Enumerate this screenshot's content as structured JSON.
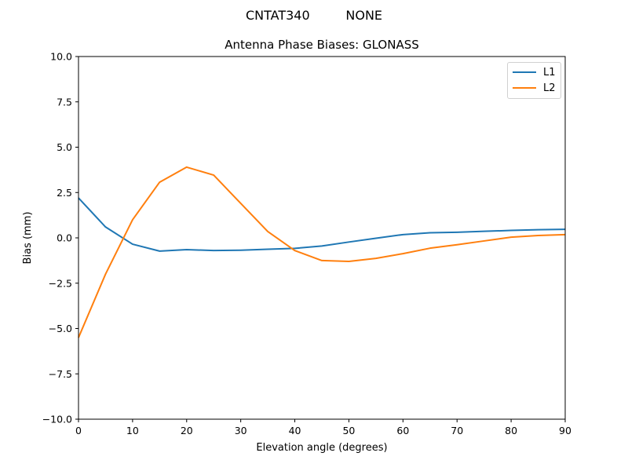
{
  "header": {
    "suptitle": "CNTAT340         NONE",
    "title": "Antenna Phase Biases: GLONASS"
  },
  "colors": {
    "L1": "#1f77b4",
    "L2": "#ff7f0e"
  },
  "legend": {
    "items": [
      {
        "label": "L1",
        "color": "#1f77b4"
      },
      {
        "label": "L2",
        "color": "#ff7f0e"
      }
    ]
  },
  "chart_data": {
    "type": "line",
    "title": "Antenna Phase Biases: GLONASS",
    "suptitle": "CNTAT340         NONE",
    "xlabel": "Elevation angle (degrees)",
    "ylabel": "Bias (mm)",
    "xlim": [
      0,
      90
    ],
    "ylim": [
      -10,
      10
    ],
    "xticks": [
      0,
      10,
      20,
      30,
      40,
      50,
      60,
      70,
      80,
      90
    ],
    "xtick_labels": [
      "0",
      "10",
      "20",
      "30",
      "40",
      "50",
      "60",
      "70",
      "80",
      "90"
    ],
    "yticks": [
      -10,
      -7.5,
      -5,
      -2.5,
      0,
      2.5,
      5,
      7.5,
      10
    ],
    "ytick_labels": [
      "−10.0",
      "−7.5",
      "−5.0",
      "−2.5",
      "0.0",
      "2.5",
      "5.0",
      "7.5",
      "10.0"
    ],
    "grid": false,
    "legend_position": "upper right",
    "x": [
      0,
      5,
      10,
      15,
      20,
      25,
      30,
      35,
      40,
      45,
      50,
      55,
      60,
      65,
      70,
      75,
      80,
      85,
      90
    ],
    "series": [
      {
        "name": "L1",
        "color": "#1f77b4",
        "values": [
          2.2,
          0.6,
          -0.35,
          -0.73,
          -0.65,
          -0.7,
          -0.68,
          -0.63,
          -0.58,
          -0.45,
          -0.23,
          -0.02,
          0.18,
          0.28,
          0.31,
          0.36,
          0.41,
          0.45,
          0.47
        ]
      },
      {
        "name": "L2",
        "color": "#ff7f0e",
        "values": [
          -5.5,
          -2.0,
          1.0,
          3.07,
          3.9,
          3.46,
          1.9,
          0.35,
          -0.7,
          -1.25,
          -1.3,
          -1.13,
          -0.87,
          -0.57,
          -0.38,
          -0.17,
          0.04,
          0.13,
          0.18
        ]
      }
    ]
  }
}
